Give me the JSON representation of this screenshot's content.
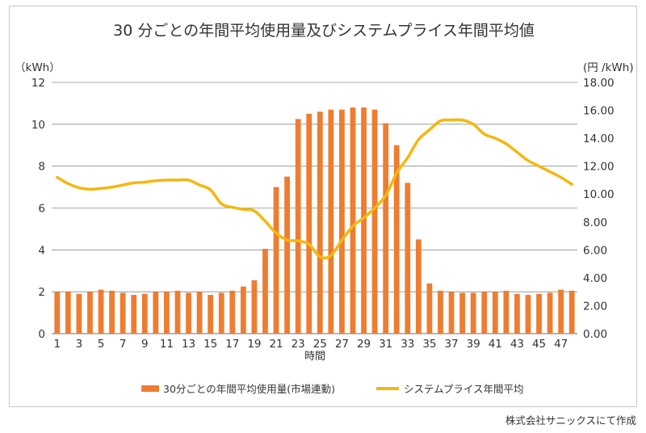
{
  "credit": "株式会社サニックスにて作成",
  "chart_data": {
    "type": "bar+line",
    "title": "30 分ごとの年間平均使用量及びシステムプライス年間平均値",
    "xlabel": "時間",
    "y_left_unit": "（kWh）",
    "y_right_unit": "(円 /kWh)",
    "x_tick_labels": [
      "1",
      "3",
      "5",
      "7",
      "9",
      "11",
      "13",
      "15",
      "17",
      "19",
      "21",
      "23",
      "25",
      "27",
      "29",
      "31",
      "33",
      "35",
      "37",
      "39",
      "41",
      "43",
      "45",
      "47"
    ],
    "y_left_ticks": [
      "0",
      "2",
      "4",
      "6",
      "8",
      "10",
      "12"
    ],
    "y_right_ticks": [
      "0.00",
      "2.00",
      "4.00",
      "6.00",
      "8.00",
      "10.00",
      "12.00",
      "14.00",
      "16.00",
      "18.00"
    ],
    "y_left_range": [
      0,
      12
    ],
    "y_right_range": [
      0,
      18
    ],
    "grid": "horizontal",
    "legend_position": "bottom",
    "colors": {
      "bar": "#ED7D31",
      "line": "#F5B70F",
      "grid": "#8c8c8c"
    },
    "x": [
      1,
      2,
      3,
      4,
      5,
      6,
      7,
      8,
      9,
      10,
      11,
      12,
      13,
      14,
      15,
      16,
      17,
      18,
      19,
      20,
      21,
      22,
      23,
      24,
      25,
      26,
      27,
      28,
      29,
      30,
      31,
      32,
      33,
      34,
      35,
      36,
      37,
      38,
      39,
      40,
      41,
      42,
      43,
      44,
      45,
      46,
      47,
      48
    ],
    "series": [
      {
        "name": "30分ごとの年間平均使用量(市場連動)",
        "type": "bar",
        "axis": "left",
        "values": [
          2.0,
          2.0,
          1.9,
          2.0,
          2.1,
          2.05,
          1.95,
          1.85,
          1.9,
          2.0,
          2.0,
          2.05,
          1.95,
          2.0,
          1.85,
          1.95,
          2.05,
          2.25,
          2.55,
          4.05,
          7.0,
          7.5,
          10.25,
          10.5,
          10.6,
          10.7,
          10.7,
          10.8,
          10.8,
          10.7,
          10.05,
          9.0,
          7.2,
          4.5,
          2.4,
          2.05,
          2.0,
          1.95,
          1.95,
          2.0,
          2.0,
          2.05,
          1.9,
          1.85,
          1.9,
          1.95,
          2.1,
          2.05
        ]
      },
      {
        "name": "システムプライス年間平均",
        "type": "line",
        "axis": "right",
        "values": [
          11.2,
          10.75,
          10.45,
          10.35,
          10.4,
          10.5,
          10.65,
          10.8,
          10.85,
          10.95,
          11.0,
          11.0,
          11.0,
          10.65,
          10.3,
          9.3,
          9.05,
          8.9,
          8.8,
          8.05,
          7.2,
          6.7,
          6.65,
          6.4,
          5.5,
          5.6,
          6.7,
          7.7,
          8.3,
          9.0,
          9.9,
          11.5,
          12.6,
          13.9,
          14.6,
          15.25,
          15.3,
          15.3,
          15.0,
          14.3,
          14.0,
          13.6,
          13.0,
          12.4,
          12.0,
          11.6,
          11.2,
          10.7
        ]
      }
    ]
  }
}
